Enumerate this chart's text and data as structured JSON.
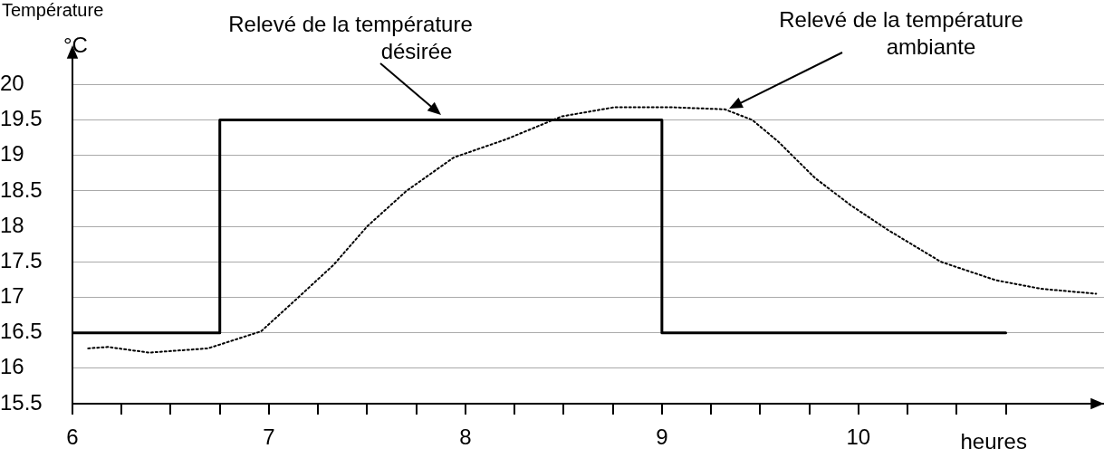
{
  "chart_data": {
    "type": "line",
    "title": "Température",
    "xlabel": "heures",
    "ylabel": "°C",
    "xlim": [
      6,
      11.25
    ],
    "ylim": [
      15.5,
      20.4
    ],
    "xticks": [
      6,
      {
        "value": 6.25,
        "label": null
      },
      {
        "value": 6.5,
        "label": null
      },
      {
        "value": 6.75,
        "label": null
      },
      7,
      {
        "value": 7.25,
        "label": null
      },
      {
        "value": 7.5,
        "label": null
      },
      {
        "value": 7.75,
        "label": null
      },
      8,
      {
        "value": 8.25,
        "label": null
      },
      {
        "value": 8.5,
        "label": null
      },
      {
        "value": 8.75,
        "label": null
      },
      9,
      {
        "value": 9.25,
        "label": null
      },
      {
        "value": 9.5,
        "label": null
      },
      {
        "value": 9.75,
        "label": null
      },
      10,
      {
        "value": 10.25,
        "label": null
      },
      {
        "value": 10.5,
        "label": null
      },
      {
        "value": 10.75,
        "label": null
      }
    ],
    "yticks": [
      15.5,
      16,
      16.5,
      17,
      17.5,
      18,
      18.5,
      19,
      19.5,
      20
    ],
    "grid": "y",
    "marker": "none",
    "series": [
      {
        "type": "step",
        "color": "#000000",
        "line_style": "solid",
        "x": [
          6,
          6.75,
          9,
          10.75
        ],
        "values": [
          16.5,
          19.5,
          16.5,
          16.5
        ]
      },
      {
        "type": "line",
        "color": "#000000",
        "line_style": "dotted",
        "x": [
          6.08,
          6.18,
          6.39,
          6.69,
          6.96,
          7.15,
          7.33,
          7.5,
          7.7,
          7.94,
          8.21,
          8.49,
          8.76,
          9.04,
          9.32,
          9.46,
          9.59,
          9.78,
          9.96,
          10.15,
          10.42,
          10.7,
          10.93,
          11.21
        ],
        "values": [
          16.28,
          16.3,
          16.22,
          16.28,
          16.52,
          17.0,
          17.46,
          18.0,
          18.5,
          18.97,
          19.23,
          19.55,
          19.68,
          19.68,
          19.65,
          19.5,
          19.2,
          18.68,
          18.3,
          17.95,
          17.5,
          17.24,
          17.12,
          17.05
        ]
      }
    ],
    "annotations": [
      "Relevé de la température\ndésirée",
      "Relevé de la température\nambiante"
    ]
  }
}
